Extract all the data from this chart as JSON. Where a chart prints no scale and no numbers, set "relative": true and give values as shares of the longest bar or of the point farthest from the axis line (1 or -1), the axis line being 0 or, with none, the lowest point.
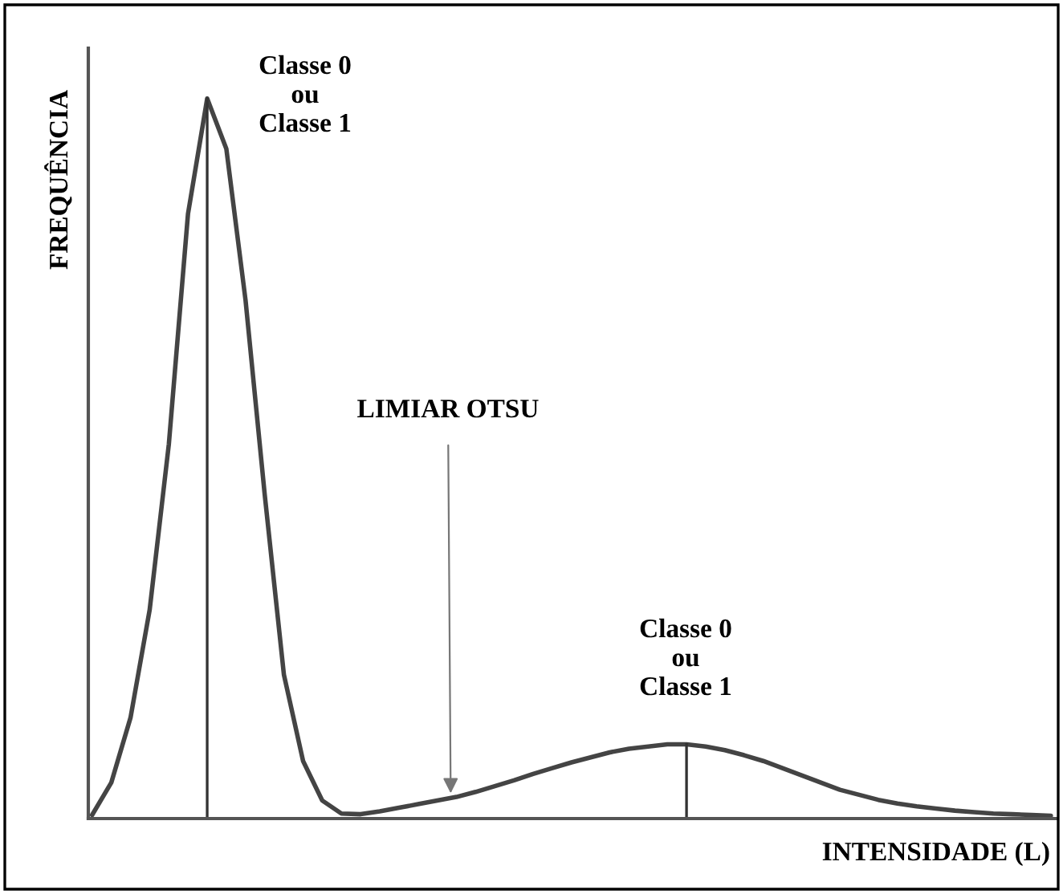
{
  "chart_data": {
    "type": "line",
    "relative": true,
    "xlabel": "INTENSIDADE (L)",
    "ylabel": "FREQUÊNCIA",
    "categories": [
      null,
      null,
      null,
      null,
      null,
      null,
      null,
      null,
      null,
      null,
      null,
      null,
      null,
      null,
      null,
      null,
      null,
      null,
      null,
      null,
      null,
      null,
      null,
      null,
      null,
      null,
      null,
      null,
      null,
      null,
      null,
      null,
      null,
      null,
      null,
      null,
      null,
      null,
      null,
      null,
      null,
      null,
      null,
      null,
      null,
      null,
      null,
      null,
      null,
      null,
      null
    ],
    "series": [
      {
        "color": "#444444",
        "values": [
          0.005,
          0.05,
          0.14,
          0.29,
          0.52,
          0.84,
          1.0,
          0.93,
          0.72,
          0.45,
          0.2,
          0.08,
          0.025,
          0.007,
          0.006,
          0.01,
          0.015,
          0.02,
          0.025,
          0.03,
          0.037,
          0.045,
          0.053,
          0.062,
          0.07,
          0.078,
          0.085,
          0.092,
          0.097,
          0.1,
          0.103,
          0.103,
          0.1,
          0.095,
          0.088,
          0.08,
          0.07,
          0.06,
          0.05,
          0.04,
          0.033,
          0.026,
          0.021,
          0.017,
          0.014,
          0.011,
          0.009,
          0.007,
          0.006,
          0.005,
          0.004
        ]
      }
    ],
    "annotations": [
      "Classe 0\nou\nClasse 1",
      "LIMIAR OTSU",
      "Classe 0\nou\nClasse 1"
    ],
    "legend": false
  }
}
